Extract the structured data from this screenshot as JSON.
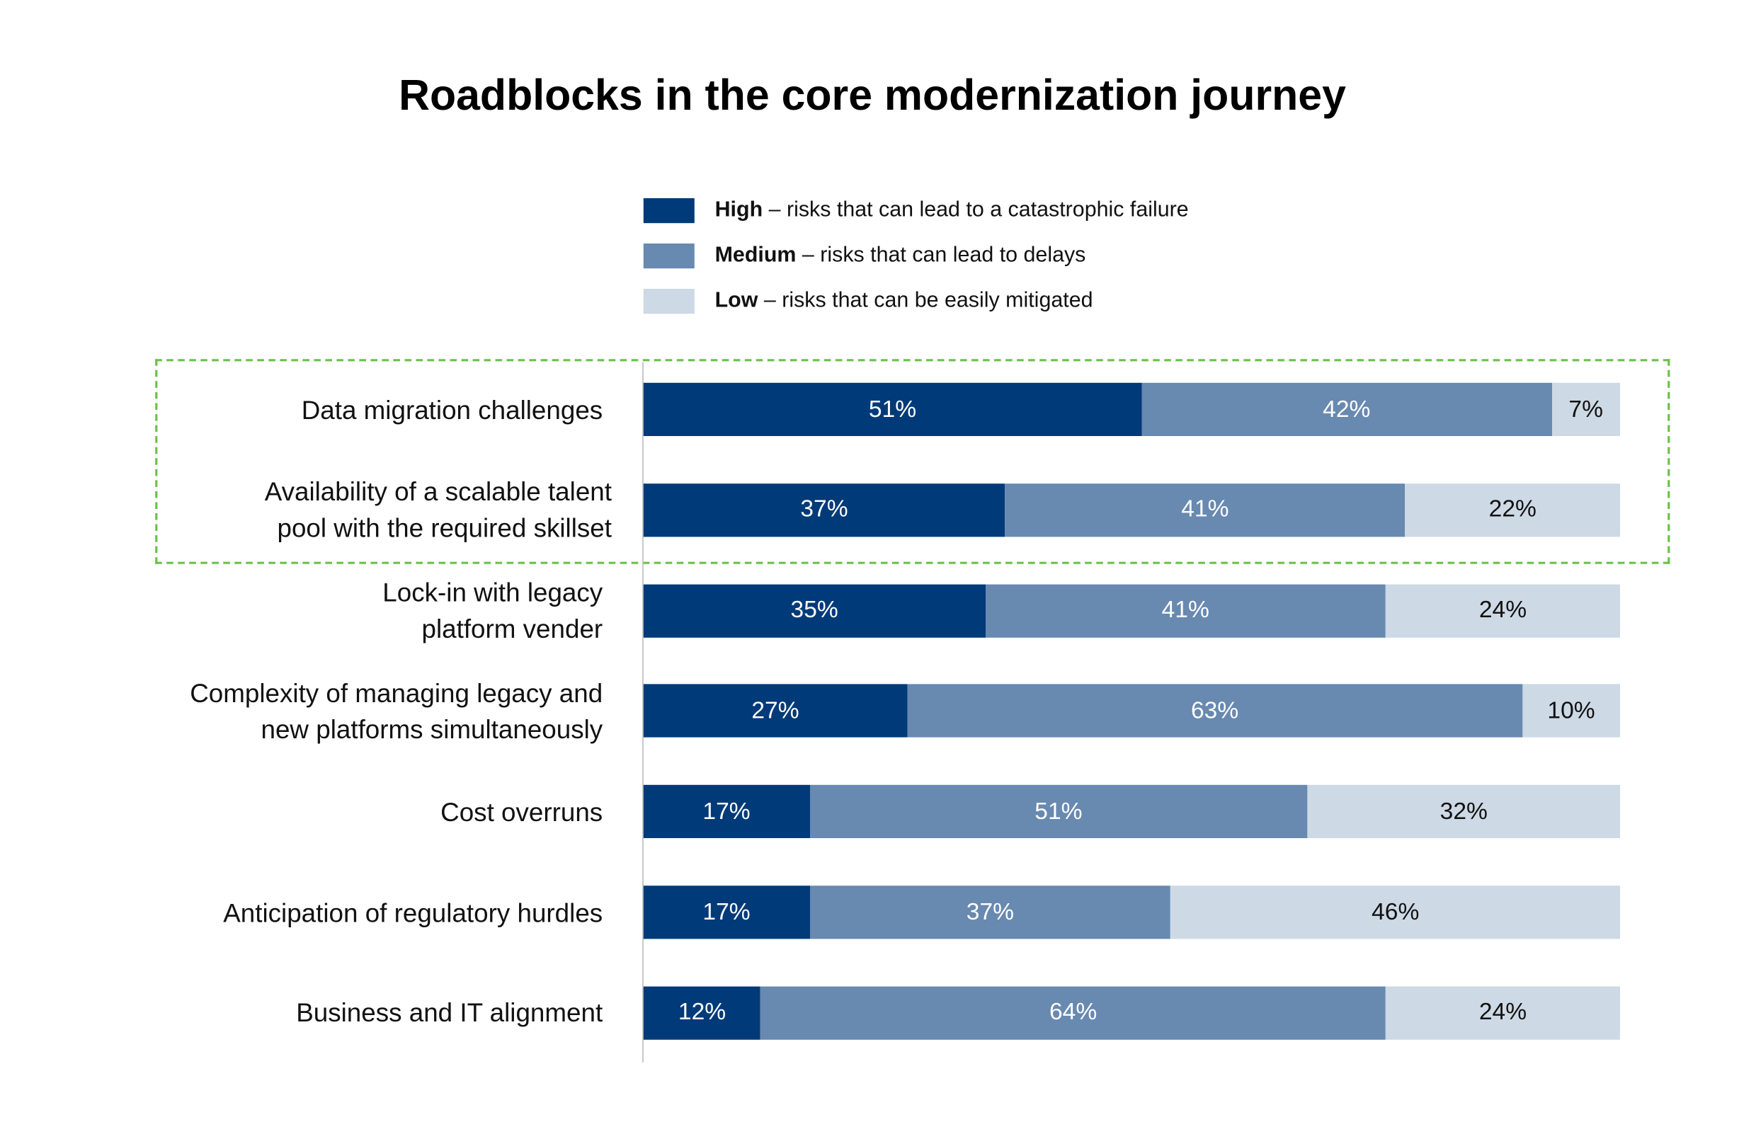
{
  "chart_data": {
    "type": "bar",
    "orientation": "horizontal",
    "stacked": true,
    "title": "Roadblocks in the core modernization journey",
    "categories": [
      "Data migration challenges",
      "Availability of a scalable talent pool with the required skillset",
      "Lock-in with legacy platform vender",
      "Complexity of managing legacy and new platforms simultaneously",
      "Cost overruns",
      "Anticipation of regulatory hurdles",
      "Business and IT alignment"
    ],
    "category_lines": [
      [
        "Data migration challenges"
      ],
      [
        "Availability of a scalable talent",
        "pool with the required skillset"
      ],
      [
        "Lock-in with legacy",
        "platform vender"
      ],
      [
        "Complexity of managing legacy and",
        "new platforms simultaneously"
      ],
      [
        "Cost overruns"
      ],
      [
        "Anticipation of regulatory hurdles"
      ],
      [
        "Business and IT alignment"
      ]
    ],
    "series": [
      {
        "name": "High",
        "description": "– risks that can lead to a catastrophic failure",
        "color": "#003a78",
        "text_color": "#ffffff",
        "values": [
          51,
          37,
          35,
          27,
          17,
          17,
          12
        ]
      },
      {
        "name": "Medium",
        "description": "– risks that can lead to delays",
        "color": "#6889b0",
        "text_color": "#ffffff",
        "values": [
          42,
          41,
          41,
          63,
          51,
          37,
          64
        ]
      },
      {
        "name": "Low",
        "description": "– risks that can be easily mitigated",
        "color": "#cdd9e5",
        "text_color": "#111111",
        "values": [
          7,
          22,
          24,
          10,
          32,
          46,
          24
        ]
      }
    ],
    "unit": "%",
    "xlim": [
      0,
      100
    ],
    "legend_position": "top",
    "grid": false,
    "highlight": {
      "categories": [
        0,
        1
      ],
      "style": "dashed",
      "color": "#6cc04a"
    }
  }
}
